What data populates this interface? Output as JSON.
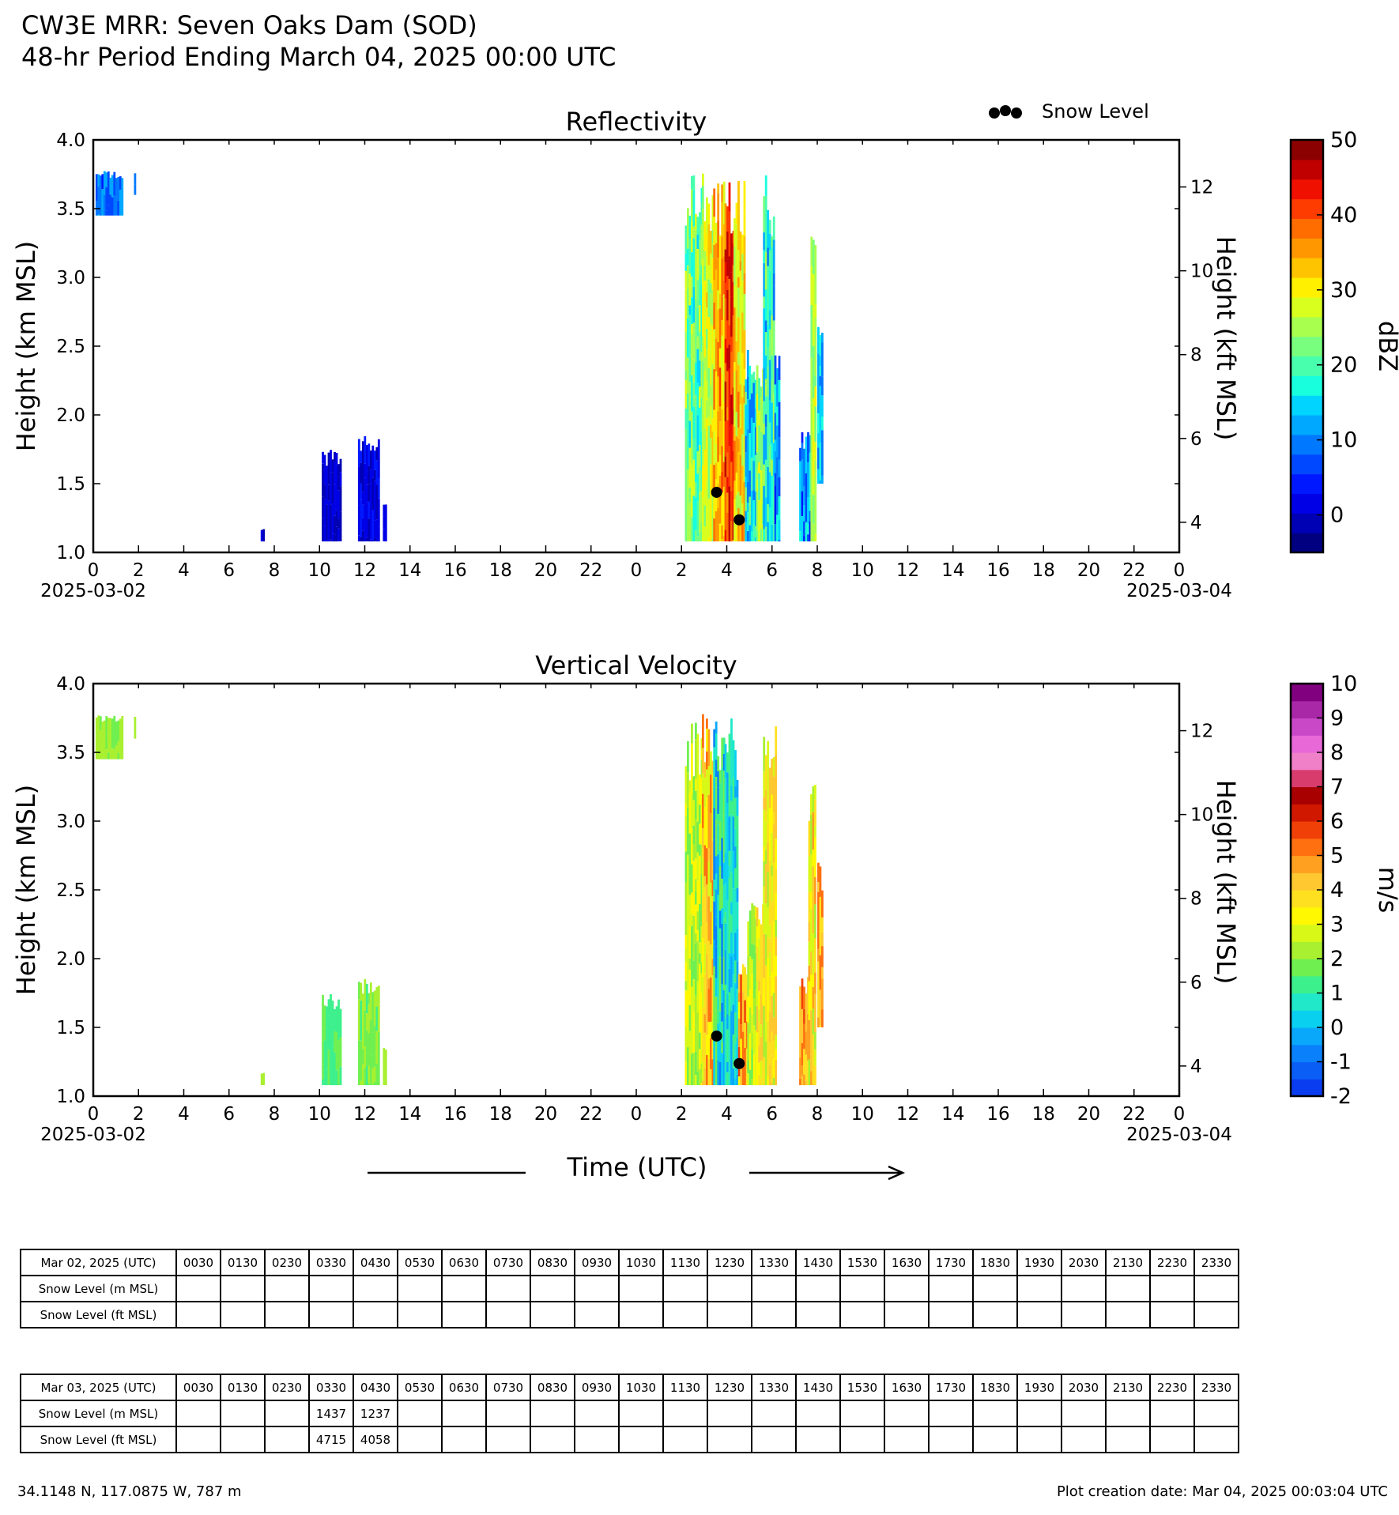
{
  "header": {
    "title": "CW3E MRR: Seven Oaks Dam (SOD)",
    "subtitle": "48-hr Period Ending March 04, 2025 00:00 UTC"
  },
  "legend": {
    "label": "Snow Level"
  },
  "x_axis": {
    "ticks": [
      "0",
      "2",
      "4",
      "6",
      "8",
      "10",
      "12",
      "14",
      "16",
      "18",
      "20",
      "22",
      "0",
      "2",
      "4",
      "6",
      "8",
      "10",
      "12",
      "14",
      "16",
      "18",
      "20",
      "22",
      "0"
    ],
    "start_date": "2025-03-02",
    "end_date": "2025-03-04",
    "label": "Time (UTC)"
  },
  "chart_data": [
    {
      "type": "heatmap",
      "title": "Reflectivity",
      "ylabel": "Height (km MSL)",
      "y2label": "Height (kft MSL)",
      "xlabel": "Time (UTC)",
      "xlim": [
        0,
        48
      ],
      "ylim": [
        1.0,
        4.0
      ],
      "yticks": [
        "1.0",
        "1.5",
        "2.0",
        "2.5",
        "3.0",
        "3.5",
        "4.0"
      ],
      "y2ticks": [
        "4",
        "6",
        "8",
        "10",
        "12"
      ],
      "colorbar": {
        "label": "dBZ",
        "ticks": [
          "0",
          "10",
          "20",
          "30",
          "40",
          "50"
        ],
        "range": [
          -5,
          50
        ],
        "colors": [
          "#000080",
          "#0000b4",
          "#0000e6",
          "#0018ff",
          "#0048ff",
          "#0078ff",
          "#00a8ff",
          "#00d4ff",
          "#18ffde",
          "#48ffae",
          "#78ff7e",
          "#a8ff4e",
          "#d8ff1e",
          "#fff000",
          "#ffc400",
          "#ff9800",
          "#ff6c00",
          "#ff3c00",
          "#f01000",
          "#c00000",
          "#8b0000"
        ]
      },
      "regions": [
        {
          "t0": 0.1,
          "t1": 1.3,
          "z0": 3.45,
          "z1": 3.78,
          "cmin": 5,
          "cmax": 13
        },
        {
          "t0": 1.8,
          "t1": 1.85,
          "z0": 3.6,
          "z1": 3.78,
          "cmin": 8,
          "cmax": 10
        },
        {
          "t0": 7.4,
          "t1": 7.5,
          "z0": 1.08,
          "z1": 1.18,
          "cmin": 0,
          "cmax": 2
        },
        {
          "t0": 10.1,
          "t1": 10.9,
          "z0": 1.08,
          "z1": 1.75,
          "cmin": -2,
          "cmax": 2
        },
        {
          "t0": 11.7,
          "t1": 12.6,
          "z0": 1.08,
          "z1": 1.88,
          "cmin": -1,
          "cmax": 4
        },
        {
          "t0": 12.8,
          "t1": 12.9,
          "z0": 1.08,
          "z1": 1.38,
          "cmin": 0,
          "cmax": 2
        },
        {
          "t0": 26.15,
          "t1": 26.9,
          "z0": 1.08,
          "z1": 3.78,
          "cmin": 15,
          "cmax": 28
        },
        {
          "t0": 26.9,
          "t1": 27.4,
          "z0": 1.08,
          "z1": 3.78,
          "cmin": 22,
          "cmax": 33
        },
        {
          "t0": 27.4,
          "t1": 27.9,
          "z0": 1.08,
          "z1": 3.78,
          "cmin": 28,
          "cmax": 40
        },
        {
          "t0": 27.9,
          "t1": 28.3,
          "z0": 1.08,
          "z1": 3.78,
          "cmin": 36,
          "cmax": 47
        },
        {
          "t0": 28.3,
          "t1": 28.8,
          "z0": 1.08,
          "z1": 3.78,
          "cmin": 25,
          "cmax": 38
        },
        {
          "t0": 28.8,
          "t1": 29.3,
          "z0": 1.08,
          "z1": 2.5,
          "cmin": 8,
          "cmax": 22
        },
        {
          "t0": 29.3,
          "t1": 29.6,
          "z0": 1.08,
          "z1": 2.4,
          "cmin": 18,
          "cmax": 30
        },
        {
          "t0": 29.6,
          "t1": 30.1,
          "z0": 1.08,
          "z1": 3.78,
          "cmin": 10,
          "cmax": 25
        },
        {
          "t0": 30.1,
          "t1": 30.3,
          "z0": 1.08,
          "z1": 2.6,
          "cmin": 5,
          "cmax": 18
        },
        {
          "t0": 31.2,
          "t1": 31.7,
          "z0": 1.08,
          "z1": 1.88,
          "cmin": 3,
          "cmax": 18
        },
        {
          "t0": 31.7,
          "t1": 31.9,
          "z0": 1.08,
          "z1": 3.32,
          "cmin": 22,
          "cmax": 30
        },
        {
          "t0": 32.0,
          "t1": 32.2,
          "z0": 1.5,
          "z1": 2.7,
          "cmin": 8,
          "cmax": 18
        }
      ],
      "snow_level_points": [
        {
          "time_hr": 27.55,
          "height_km": 1.437
        },
        {
          "time_hr": 28.55,
          "height_km": 1.237
        }
      ]
    },
    {
      "type": "heatmap",
      "title": "Vertical Velocity",
      "ylabel": "Height (km MSL)",
      "y2label": "Height (kft MSL)",
      "xlabel": "Time (UTC)",
      "xlim": [
        0,
        48
      ],
      "ylim": [
        1.0,
        4.0
      ],
      "yticks": [
        "1.0",
        "1.5",
        "2.0",
        "2.5",
        "3.0",
        "3.5",
        "4.0"
      ],
      "y2ticks": [
        "4",
        "6",
        "8",
        "10",
        "12"
      ],
      "colorbar": {
        "label": "m/s",
        "ticks": [
          "-2",
          "-1",
          "0",
          "1",
          "2",
          "3",
          "4",
          "5",
          "6",
          "7",
          "8",
          "9",
          "10"
        ],
        "range": [
          -2,
          10
        ],
        "colors": [
          "#0a3cf0",
          "#0a5ef5",
          "#0a80fa",
          "#0aa8fa",
          "#0ad0f0",
          "#20e8c8",
          "#3cf08c",
          "#70f050",
          "#a8f030",
          "#d8f818",
          "#fff800",
          "#ffe020",
          "#ffc830",
          "#ffa020",
          "#ff7010",
          "#f04008",
          "#d01800",
          "#a80000",
          "#d83c6c",
          "#f080c8",
          "#e868d8",
          "#c848c8",
          "#a828a8",
          "#800080"
        ]
      },
      "regions": [
        {
          "t0": 0.1,
          "t1": 1.3,
          "z0": 3.45,
          "z1": 3.78,
          "cmin": 1.8,
          "cmax": 2.4
        },
        {
          "t0": 1.8,
          "t1": 1.85,
          "z0": 3.6,
          "z1": 3.78,
          "cmin": 2.2,
          "cmax": 2.6
        },
        {
          "t0": 7.4,
          "t1": 7.5,
          "z0": 1.08,
          "z1": 1.18,
          "cmin": 2.0,
          "cmax": 2.4
        },
        {
          "t0": 10.1,
          "t1": 10.9,
          "z0": 1.08,
          "z1": 1.75,
          "cmin": 1.0,
          "cmax": 1.8
        },
        {
          "t0": 11.7,
          "t1": 12.6,
          "z0": 1.08,
          "z1": 1.88,
          "cmin": 1.4,
          "cmax": 2.4
        },
        {
          "t0": 12.8,
          "t1": 12.9,
          "z0": 1.08,
          "z1": 1.38,
          "cmin": 2.0,
          "cmax": 2.4
        },
        {
          "t0": 26.15,
          "t1": 26.9,
          "z0": 1.08,
          "z1": 3.78,
          "cmin": 1.5,
          "cmax": 3.5
        },
        {
          "t0": 26.9,
          "t1": 27.4,
          "z0": 1.08,
          "z1": 3.78,
          "cmin": 2.5,
          "cmax": 5.5
        },
        {
          "t0": 27.4,
          "t1": 27.9,
          "z0": 1.08,
          "z1": 3.78,
          "cmin": -1.0,
          "cmax": 2.0
        },
        {
          "t0": 27.9,
          "t1": 28.5,
          "z0": 1.08,
          "z1": 3.78,
          "cmin": -0.5,
          "cmax": 1.5
        },
        {
          "t0": 28.5,
          "t1": 28.9,
          "z0": 1.08,
          "z1": 2.0,
          "cmin": 3.0,
          "cmax": 6.0
        },
        {
          "t0": 28.9,
          "t1": 29.3,
          "z0": 1.08,
          "z1": 2.5,
          "cmin": 1.5,
          "cmax": 3.5
        },
        {
          "t0": 29.3,
          "t1": 29.6,
          "z0": 1.08,
          "z1": 2.4,
          "cmin": 2.5,
          "cmax": 4.5
        },
        {
          "t0": 29.6,
          "t1": 30.2,
          "z0": 1.08,
          "z1": 3.78,
          "cmin": 2.0,
          "cmax": 4.5
        },
        {
          "t0": 31.2,
          "t1": 31.6,
          "z0": 1.08,
          "z1": 1.88,
          "cmin": 3.5,
          "cmax": 6.0
        },
        {
          "t0": 31.6,
          "t1": 31.9,
          "z0": 1.08,
          "z1": 3.32,
          "cmin": 2.0,
          "cmax": 5.0
        },
        {
          "t0": 32.0,
          "t1": 32.2,
          "z0": 1.5,
          "z1": 2.7,
          "cmin": 3.5,
          "cmax": 5.5
        }
      ],
      "snow_level_points": [
        {
          "time_hr": 27.55,
          "height_km": 1.437
        },
        {
          "time_hr": 28.55,
          "height_km": 1.237
        }
      ]
    },
    {
      "type": "table",
      "title": "Snow Level Table",
      "columns": [
        "0030",
        "0130",
        "0230",
        "0330",
        "0430",
        "0530",
        "0630",
        "0730",
        "0830",
        "0930",
        "1030",
        "1130",
        "1230",
        "1330",
        "1430",
        "1530",
        "1630",
        "1730",
        "1830",
        "1930",
        "2030",
        "2130",
        "2230",
        "2330"
      ],
      "tables": [
        {
          "header": "Mar 02, 2025 (UTC)",
          "rows": [
            {
              "label": "Snow Level (m MSL)",
              "values": [
                "",
                "",
                "",
                "",
                "",
                "",
                "",
                "",
                "",
                "",
                "",
                "",
                "",
                "",
                "",
                "",
                "",
                "",
                "",
                "",
                "",
                "",
                "",
                ""
              ]
            },
            {
              "label": "Snow Level (ft MSL)",
              "values": [
                "",
                "",
                "",
                "",
                "",
                "",
                "",
                "",
                "",
                "",
                "",
                "",
                "",
                "",
                "",
                "",
                "",
                "",
                "",
                "",
                "",
                "",
                "",
                ""
              ]
            }
          ]
        },
        {
          "header": "Mar 03, 2025 (UTC)",
          "rows": [
            {
              "label": "Snow Level (m MSL)",
              "values": [
                "",
                "",
                "",
                "1437",
                "1237",
                "",
                "",
                "",
                "",
                "",
                "",
                "",
                "",
                "",
                "",
                "",
                "",
                "",
                "",
                "",
                "",
                "",
                "",
                ""
              ]
            },
            {
              "label": "Snow Level (ft MSL)",
              "values": [
                "",
                "",
                "",
                "4715",
                "4058",
                "",
                "",
                "",
                "",
                "",
                "",
                "",
                "",
                "",
                "",
                "",
                "",
                "",
                "",
                "",
                "",
                "",
                "",
                ""
              ]
            }
          ]
        }
      ]
    }
  ],
  "footer": {
    "location": "34.1148 N, 117.0875 W, 787 m",
    "creation": "Plot creation date: Mar 04, 2025 00:03:04 UTC"
  }
}
